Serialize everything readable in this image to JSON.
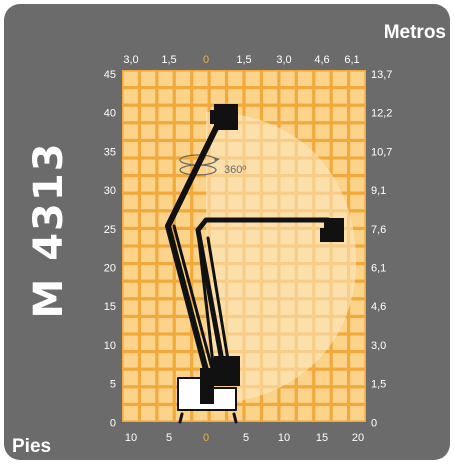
{
  "model": "M 4313",
  "units": {
    "metros": "Metros",
    "pies": "Pies"
  },
  "axes": {
    "top_m": [
      "3,0",
      "1,5",
      "0",
      "1,5",
      "3,0",
      "4,6",
      "6,1"
    ],
    "bottom_ft": [
      "10",
      "5",
      "0",
      "5",
      "10",
      "15",
      "20"
    ],
    "left_ft": [
      "45",
      "40",
      "35",
      "30",
      "25",
      "20",
      "15",
      "10",
      "5",
      "0"
    ],
    "right_m": [
      "13,7",
      "12,2",
      "10,7",
      "9,1",
      "7,6",
      "6,1",
      "4,6",
      "3,0",
      "1,5",
      "0"
    ]
  },
  "rotation_label": "360º",
  "colors": {
    "frame": "#6b6b6b",
    "grid_bg": "#f2a93b",
    "grid_cell": "#fbd38a",
    "envelope": "#fdebc8",
    "machine": "#111111",
    "zero_tick": "#f2a93b"
  }
}
